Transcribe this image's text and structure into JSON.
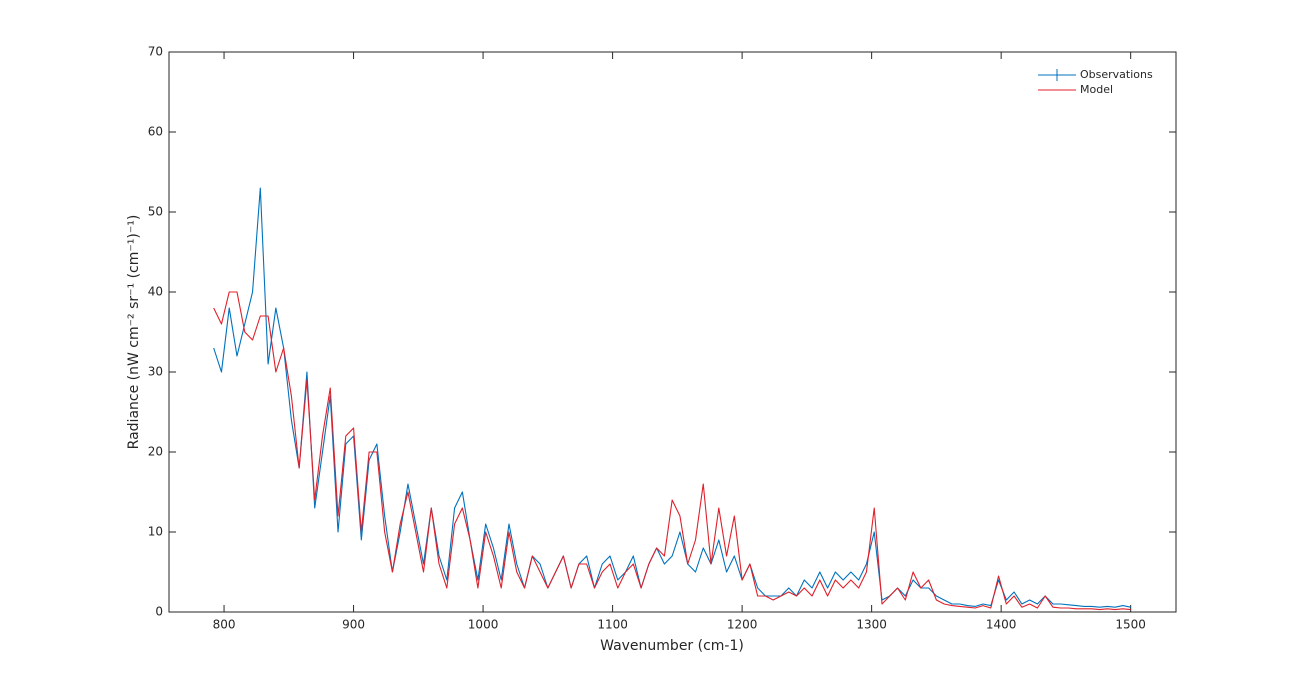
{
  "chart_data": {
    "type": "line",
    "xlabel": "Wavenumber (cm-1)",
    "ylabel": "Radiance (nW cm⁻² sr⁻¹ (cm⁻¹)⁻¹)",
    "x": [
      792,
      798,
      804,
      810,
      816,
      822,
      828,
      834,
      840,
      846,
      852,
      858,
      864,
      870,
      876,
      882,
      888,
      894,
      900,
      906,
      912,
      918,
      924,
      930,
      936,
      942,
      948,
      954,
      960,
      966,
      972,
      978,
      984,
      990,
      996,
      1002,
      1008,
      1014,
      1020,
      1026,
      1032,
      1038,
      1044,
      1050,
      1056,
      1062,
      1068,
      1074,
      1080,
      1086,
      1092,
      1098,
      1104,
      1110,
      1116,
      1122,
      1128,
      1134,
      1140,
      1146,
      1152,
      1158,
      1164,
      1170,
      1176,
      1182,
      1188,
      1194,
      1200,
      1206,
      1212,
      1218,
      1224,
      1230,
      1236,
      1242,
      1248,
      1254,
      1260,
      1266,
      1272,
      1278,
      1284,
      1290,
      1296,
      1302,
      1308,
      1314,
      1320,
      1326,
      1332,
      1338,
      1344,
      1350,
      1356,
      1362,
      1368,
      1374,
      1380,
      1386,
      1392,
      1398,
      1404,
      1410,
      1416,
      1422,
      1428,
      1434,
      1440,
      1446,
      1452,
      1458,
      1464,
      1470,
      1476,
      1482,
      1488,
      1494,
      1500
    ],
    "series": [
      {
        "name": "Observations",
        "color": "#0072bd",
        "marker": "errorbar",
        "values": [
          33,
          30,
          38,
          32,
          36,
          40,
          53,
          31,
          38,
          33,
          24,
          18,
          30,
          13,
          20,
          27,
          10,
          21,
          22,
          9,
          19,
          21,
          12,
          5,
          10,
          16,
          11,
          6,
          13,
          7,
          4,
          13,
          15,
          9,
          4,
          11,
          8,
          4,
          11,
          6,
          3,
          7,
          6,
          3,
          5,
          7,
          3,
          6,
          7,
          3,
          6,
          7,
          4,
          5,
          7,
          3,
          6,
          8,
          6,
          7,
          10,
          6,
          5,
          8,
          6,
          9,
          5,
          7,
          4,
          6,
          3,
          2,
          2,
          2,
          3,
          2,
          4,
          3,
          5,
          3,
          5,
          4,
          5,
          4,
          6,
          10,
          1.5,
          2,
          3,
          2,
          4,
          3,
          3,
          2,
          1.5,
          1,
          1,
          0.8,
          0.7,
          1,
          0.8,
          4,
          1.5,
          2.5,
          1,
          1.5,
          1,
          2,
          1,
          1,
          0.9,
          0.8,
          0.7,
          0.7,
          0.6,
          0.7,
          0.6,
          0.8,
          0.6
        ]
      },
      {
        "name": "Model",
        "color": "#e0202a",
        "values": [
          38,
          36,
          40,
          40,
          35,
          34,
          37,
          37,
          30,
          33,
          27,
          18,
          29,
          14,
          22,
          28,
          12,
          22,
          23,
          10,
          20,
          20,
          10,
          5,
          11,
          15,
          10,
          5,
          13,
          6,
          3,
          11,
          13,
          9,
          3,
          10,
          7,
          3,
          10,
          5,
          3,
          7,
          5,
          3,
          5,
          7,
          3,
          6,
          6,
          3,
          5,
          6,
          3,
          5,
          6,
          3,
          6,
          8,
          7,
          14,
          12,
          6,
          9,
          16,
          6,
          13,
          7,
          12,
          4,
          6,
          2,
          2,
          1.5,
          2,
          2.5,
          2,
          3,
          2,
          4,
          2,
          4,
          3,
          4,
          3,
          5,
          13,
          1,
          2,
          3,
          1.5,
          5,
          3,
          4,
          1.5,
          1,
          0.8,
          0.7,
          0.6,
          0.5,
          0.8,
          0.5,
          4.5,
          1,
          2,
          0.6,
          1,
          0.5,
          2,
          0.6,
          0.5,
          0.5,
          0.4,
          0.4,
          0.4,
          0.3,
          0.4,
          0.3,
          0.4,
          0.3
        ]
      }
    ],
    "xlim": [
      757.5,
      1535
    ],
    "xticks": [
      800,
      900,
      1000,
      1100,
      1200,
      1300,
      1400,
      1500
    ],
    "ylim": [
      0,
      70
    ],
    "yticks": [
      0,
      10,
      20,
      30,
      40,
      50,
      60,
      70
    ],
    "legend": "upper right",
    "grid": false
  }
}
